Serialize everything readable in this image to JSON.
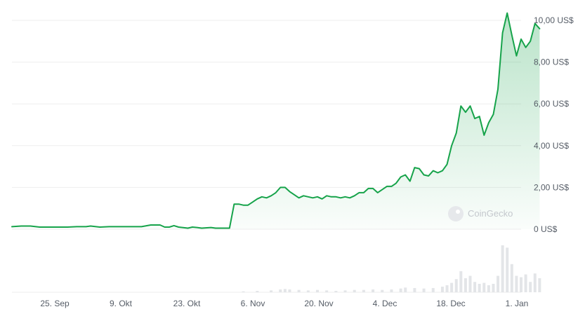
{
  "chart_data": {
    "type": "area",
    "title": "",
    "xlabel": "",
    "ylabel": "",
    "x_ticks": [
      "25. Sep",
      "9. Okt",
      "23. Okt",
      "6. Nov",
      "20. Nov",
      "4. Dec",
      "18. Dec",
      "1. Jan"
    ],
    "y_ticks": [
      "0 US$",
      "2,00 US$",
      "4,00 US$",
      "6,00 US$",
      "8,00 US$",
      "10,00 US$"
    ],
    "ylim": [
      0,
      10
    ],
    "grid": true,
    "line_color": "#16a34a",
    "fill_color": "#16a34a",
    "volume_color": "#e3e5e8",
    "watermark": "CoinGecko",
    "x_start": "2023-09-16",
    "x_end": "2024-01-04",
    "series": [
      {
        "values": [
          {
            "x": "2023-09-16",
            "y": 0.12
          },
          {
            "x": "2023-09-18",
            "y": 0.15
          },
          {
            "x": "2023-09-20",
            "y": 0.15
          },
          {
            "x": "2023-09-22",
            "y": 0.1
          },
          {
            "x": "2023-09-24",
            "y": 0.1
          },
          {
            "x": "2023-09-26",
            "y": 0.1
          },
          {
            "x": "2023-09-28",
            "y": 0.1
          },
          {
            "x": "2023-09-30",
            "y": 0.12
          },
          {
            "x": "2023-10-02",
            "y": 0.12
          },
          {
            "x": "2023-10-03",
            "y": 0.15
          },
          {
            "x": "2023-10-05",
            "y": 0.1
          },
          {
            "x": "2023-10-07",
            "y": 0.12
          },
          {
            "x": "2023-10-09",
            "y": 0.12
          },
          {
            "x": "2023-10-11",
            "y": 0.12
          },
          {
            "x": "2023-10-14",
            "y": 0.12
          },
          {
            "x": "2023-10-16",
            "y": 0.2
          },
          {
            "x": "2023-10-18",
            "y": 0.2
          },
          {
            "x": "2023-10-19",
            "y": 0.1
          },
          {
            "x": "2023-10-20",
            "y": 0.1
          },
          {
            "x": "2023-10-21",
            "y": 0.17
          },
          {
            "x": "2023-10-22",
            "y": 0.1
          },
          {
            "x": "2023-10-24",
            "y": 0.05
          },
          {
            "x": "2023-10-25",
            "y": 0.1
          },
          {
            "x": "2023-10-26",
            "y": 0.08
          },
          {
            "x": "2023-10-27",
            "y": 0.05
          },
          {
            "x": "2023-10-29",
            "y": 0.08
          },
          {
            "x": "2023-10-30",
            "y": 0.05
          },
          {
            "x": "2023-11-01",
            "y": 0.05
          },
          {
            "x": "2023-11-02",
            "y": 0.05
          },
          {
            "x": "2023-11-03",
            "y": 1.2
          },
          {
            "x": "2023-11-04",
            "y": 1.2
          },
          {
            "x": "2023-11-05",
            "y": 1.15
          },
          {
            "x": "2023-11-06",
            "y": 1.15
          },
          {
            "x": "2023-11-07",
            "y": 1.3
          },
          {
            "x": "2023-11-08",
            "y": 1.45
          },
          {
            "x": "2023-11-09",
            "y": 1.55
          },
          {
            "x": "2023-11-10",
            "y": 1.5
          },
          {
            "x": "2023-11-11",
            "y": 1.6
          },
          {
            "x": "2023-11-12",
            "y": 1.75
          },
          {
            "x": "2023-11-13",
            "y": 2.0
          },
          {
            "x": "2023-11-14",
            "y": 2.0
          },
          {
            "x": "2023-11-15",
            "y": 1.8
          },
          {
            "x": "2023-11-16",
            "y": 1.65
          },
          {
            "x": "2023-11-17",
            "y": 1.5
          },
          {
            "x": "2023-11-18",
            "y": 1.6
          },
          {
            "x": "2023-11-19",
            "y": 1.55
          },
          {
            "x": "2023-11-20",
            "y": 1.5
          },
          {
            "x": "2023-11-21",
            "y": 1.55
          },
          {
            "x": "2023-11-22",
            "y": 1.45
          },
          {
            "x": "2023-11-23",
            "y": 1.6
          },
          {
            "x": "2023-11-24",
            "y": 1.55
          },
          {
            "x": "2023-11-25",
            "y": 1.55
          },
          {
            "x": "2023-11-26",
            "y": 1.5
          },
          {
            "x": "2023-11-27",
            "y": 1.55
          },
          {
            "x": "2023-11-28",
            "y": 1.5
          },
          {
            "x": "2023-11-29",
            "y": 1.6
          },
          {
            "x": "2023-11-30",
            "y": 1.75
          },
          {
            "x": "2023-12-01",
            "y": 1.75
          },
          {
            "x": "2023-12-02",
            "y": 1.95
          },
          {
            "x": "2023-12-03",
            "y": 1.95
          },
          {
            "x": "2023-12-04",
            "y": 1.75
          },
          {
            "x": "2023-12-05",
            "y": 1.9
          },
          {
            "x": "2023-12-06",
            "y": 2.05
          },
          {
            "x": "2023-12-07",
            "y": 2.05
          },
          {
            "x": "2023-12-08",
            "y": 2.2
          },
          {
            "x": "2023-12-09",
            "y": 2.5
          },
          {
            "x": "2023-12-10",
            "y": 2.6
          },
          {
            "x": "2023-12-11",
            "y": 2.3
          },
          {
            "x": "2023-12-12",
            "y": 2.95
          },
          {
            "x": "2023-12-13",
            "y": 2.9
          },
          {
            "x": "2023-12-14",
            "y": 2.6
          },
          {
            "x": "2023-12-15",
            "y": 2.55
          },
          {
            "x": "2023-12-16",
            "y": 2.8
          },
          {
            "x": "2023-12-17",
            "y": 2.7
          },
          {
            "x": "2023-12-18",
            "y": 2.8
          },
          {
            "x": "2023-12-19",
            "y": 3.1
          },
          {
            "x": "2023-12-20",
            "y": 4.0
          },
          {
            "x": "2023-12-21",
            "y": 4.6
          },
          {
            "x": "2023-12-22",
            "y": 5.9
          },
          {
            "x": "2023-12-23",
            "y": 5.6
          },
          {
            "x": "2023-12-24",
            "y": 5.9
          },
          {
            "x": "2023-12-25",
            "y": 5.3
          },
          {
            "x": "2023-12-26",
            "y": 5.4
          },
          {
            "x": "2023-12-27",
            "y": 4.5
          },
          {
            "x": "2023-12-28",
            "y": 5.1
          },
          {
            "x": "2023-12-29",
            "y": 5.5
          },
          {
            "x": "2023-12-30",
            "y": 6.7
          },
          {
            "x": "2023-12-31",
            "y": 9.4
          },
          {
            "x": "2024-01-01",
            "y": 10.35
          },
          {
            "x": "2024-01-02",
            "y": 9.3
          },
          {
            "x": "2024-01-03",
            "y": 8.3
          },
          {
            "x": "2024-01-04",
            "y": 9.1
          },
          {
            "x": "2024-01-05",
            "y": 8.7
          },
          {
            "x": "2024-01-06",
            "y": 9.0
          },
          {
            "x": "2024-01-07",
            "y": 9.85
          },
          {
            "x": "2024-01-08",
            "y": 9.6
          }
        ]
      }
    ],
    "volume": [
      {
        "x": "2023-11-05",
        "v": 0.02
      },
      {
        "x": "2023-11-08",
        "v": 0.03
      },
      {
        "x": "2023-11-11",
        "v": 0.04
      },
      {
        "x": "2023-11-13",
        "v": 0.06
      },
      {
        "x": "2023-11-14",
        "v": 0.07
      },
      {
        "x": "2023-11-15",
        "v": 0.06
      },
      {
        "x": "2023-11-17",
        "v": 0.05
      },
      {
        "x": "2023-11-19",
        "v": 0.04
      },
      {
        "x": "2023-11-21",
        "v": 0.05
      },
      {
        "x": "2023-11-23",
        "v": 0.04
      },
      {
        "x": "2023-11-25",
        "v": 0.03
      },
      {
        "x": "2023-11-27",
        "v": 0.04
      },
      {
        "x": "2023-11-29",
        "v": 0.05
      },
      {
        "x": "2023-12-01",
        "v": 0.05
      },
      {
        "x": "2023-12-03",
        "v": 0.06
      },
      {
        "x": "2023-12-05",
        "v": 0.05
      },
      {
        "x": "2023-12-07",
        "v": 0.06
      },
      {
        "x": "2023-12-09",
        "v": 0.08
      },
      {
        "x": "2023-12-10",
        "v": 0.1
      },
      {
        "x": "2023-12-12",
        "v": 0.09
      },
      {
        "x": "2023-12-14",
        "v": 0.08
      },
      {
        "x": "2023-12-16",
        "v": 0.09
      },
      {
        "x": "2023-12-18",
        "v": 0.12
      },
      {
        "x": "2023-12-19",
        "v": 0.15
      },
      {
        "x": "2023-12-20",
        "v": 0.2
      },
      {
        "x": "2023-12-21",
        "v": 0.28
      },
      {
        "x": "2023-12-22",
        "v": 0.45
      },
      {
        "x": "2023-12-23",
        "v": 0.3
      },
      {
        "x": "2023-12-24",
        "v": 0.35
      },
      {
        "x": "2023-12-25",
        "v": 0.22
      },
      {
        "x": "2023-12-26",
        "v": 0.18
      },
      {
        "x": "2023-12-27",
        "v": 0.2
      },
      {
        "x": "2023-12-28",
        "v": 0.15
      },
      {
        "x": "2023-12-29",
        "v": 0.18
      },
      {
        "x": "2023-12-30",
        "v": 0.35
      },
      {
        "x": "2023-12-31",
        "v": 1.0
      },
      {
        "x": "2024-01-01",
        "v": 0.95
      },
      {
        "x": "2024-01-02",
        "v": 0.6
      },
      {
        "x": "2024-01-03",
        "v": 0.35
      },
      {
        "x": "2024-01-04",
        "v": 0.32
      },
      {
        "x": "2024-01-05",
        "v": 0.38
      },
      {
        "x": "2024-01-06",
        "v": 0.22
      },
      {
        "x": "2024-01-07",
        "v": 0.4
      },
      {
        "x": "2024-01-08",
        "v": 0.3
      }
    ]
  }
}
